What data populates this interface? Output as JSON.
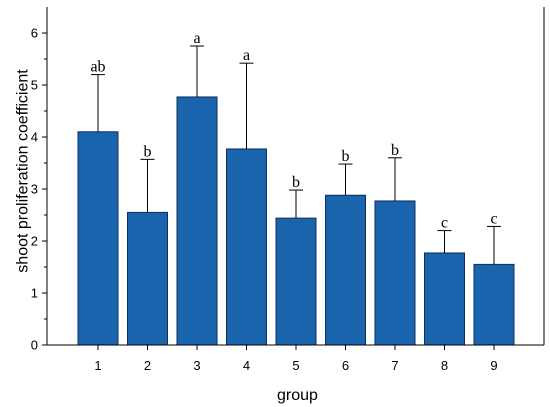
{
  "chart_data": {
    "type": "bar",
    "xlabel": "group",
    "ylabel": "shoot proliferation coefficient",
    "ylim": [
      0,
      6.5
    ],
    "yticks": [
      0,
      1,
      2,
      3,
      4,
      5,
      6
    ],
    "grid": false,
    "categories": [
      "1",
      "2",
      "3",
      "4",
      "5",
      "6",
      "7",
      "8",
      "9"
    ],
    "values": [
      4.1,
      2.55,
      4.77,
      3.77,
      2.44,
      2.88,
      2.77,
      1.77,
      1.55
    ],
    "error_upper": [
      5.2,
      3.57,
      5.75,
      5.42,
      2.98,
      3.48,
      3.6,
      2.2,
      2.28
    ],
    "letters": [
      "ab",
      "b",
      "a",
      "a",
      "b",
      "b",
      "b",
      "c",
      "c"
    ],
    "bar_color": "#1a63ad"
  }
}
